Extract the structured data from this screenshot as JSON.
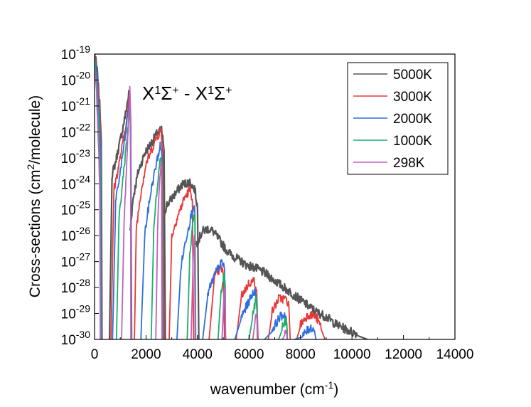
{
  "chart_data": {
    "type": "line",
    "title": "",
    "annotation": {
      "X": "X",
      "one": "1",
      "sigma": "Σ",
      "plus": "+",
      "dash": " - "
    },
    "xlabel": {
      "text": "wavenumber (cm",
      "sup": "-1",
      "close": ")"
    },
    "ylabel": {
      "text": "Cross-sections (cm",
      "sup": "2",
      "close": "/molecule)"
    },
    "xlim": [
      0,
      14000
    ],
    "ylog": true,
    "ylim_exp": [
      -30,
      -19
    ],
    "xticks": [
      "0",
      "2000",
      "4000",
      "6000",
      "8000",
      "10000",
      "12000",
      "14000"
    ],
    "ytick_base": "10",
    "yticks": [
      "-30",
      "-29",
      "-28",
      "-27",
      "-26",
      "-25",
      "-24",
      "-23",
      "-22",
      "-21",
      "-20",
      "-19"
    ],
    "legend_position": "top-right",
    "series": [
      {
        "name": "5000K",
        "color": "#555555",
        "bands": [
          [
            [
              0,
              -19.0
            ],
            [
              100,
              -19.7
            ],
            [
              200,
              -21.0
            ],
            [
              260,
              -22.3
            ],
            [
              290,
              -30.0
            ]
          ],
          [
            [
              580,
              -30.0
            ],
            [
              680,
              -23.7
            ],
            [
              800,
              -23.3
            ],
            [
              1000,
              -22.4
            ],
            [
              1200,
              -21.4
            ],
            [
              1330,
              -20.6
            ],
            [
              1400,
              -21.5
            ],
            [
              1440,
              -30.0
            ]
          ],
          [
            [
              1380,
              -25.9
            ],
            [
              1500,
              -24.6
            ],
            [
              1700,
              -23.6
            ],
            [
              1950,
              -22.9
            ],
            [
              2200,
              -22.5
            ],
            [
              2450,
              -22.1
            ],
            [
              2600,
              -22.0
            ],
            [
              2700,
              -22.7
            ],
            [
              2750,
              -30.0
            ]
          ],
          [
            [
              2650,
              -25.4
            ],
            [
              2800,
              -24.9
            ],
            [
              3100,
              -24.5
            ],
            [
              3400,
              -24.1
            ],
            [
              3700,
              -24.0
            ],
            [
              3900,
              -24.3
            ],
            [
              4000,
              -25.0
            ],
            [
              4050,
              -30.0
            ]
          ],
          [
            [
              3950,
              -26.4
            ],
            [
              4200,
              -25.9
            ],
            [
              4400,
              -25.8
            ],
            [
              4600,
              -25.9
            ],
            [
              4900,
              -26.3
            ],
            [
              5100,
              -26.6
            ],
            [
              5300,
              -26.8
            ],
            [
              5600,
              -27.0
            ],
            [
              5900,
              -27.2
            ],
            [
              6200,
              -27.3
            ],
            [
              6600,
              -27.5
            ],
            [
              7000,
              -27.8
            ],
            [
              7400,
              -28.1
            ],
            [
              7800,
              -28.4
            ],
            [
              8200,
              -28.7
            ],
            [
              8600,
              -29.0
            ],
            [
              9000,
              -29.2
            ],
            [
              9400,
              -29.5
            ],
            [
              9800,
              -29.7
            ],
            [
              10200,
              -29.85
            ],
            [
              10600,
              -30.0
            ]
          ]
        ]
      },
      {
        "name": "3000K",
        "color": "#e8393a",
        "bands": [
          [
            [
              0,
              -19.1
            ],
            [
              100,
              -19.8
            ],
            [
              200,
              -21.2
            ],
            [
              250,
              -22.8
            ],
            [
              275,
              -30.0
            ]
          ],
          [
            [
              640,
              -30.0
            ],
            [
              750,
              -24.3
            ],
            [
              900,
              -23.6
            ],
            [
              1100,
              -22.5
            ],
            [
              1300,
              -21.2
            ],
            [
              1360,
              -20.7
            ],
            [
              1400,
              -21.6
            ],
            [
              1430,
              -30.0
            ]
          ],
          [
            [
              1550,
              -30.0
            ],
            [
              1620,
              -25.8
            ],
            [
              1800,
              -24.4
            ],
            [
              2000,
              -23.3
            ],
            [
              2200,
              -22.8
            ],
            [
              2400,
              -22.3
            ],
            [
              2580,
              -22.0
            ],
            [
              2650,
              -22.8
            ],
            [
              2700,
              -30.0
            ]
          ],
          [
            [
              2900,
              -30.0
            ],
            [
              3000,
              -26.1
            ],
            [
              3200,
              -25.4
            ],
            [
              3500,
              -24.6
            ],
            [
              3700,
              -24.3
            ],
            [
              3800,
              -24.6
            ],
            [
              3850,
              -30.0
            ]
          ],
          [
            [
              4450,
              -30.0
            ],
            [
              4650,
              -27.7
            ],
            [
              4900,
              -27.3
            ],
            [
              5000,
              -27.5
            ],
            [
              5050,
              -30.0
            ]
          ],
          [
            [
              5500,
              -30.0
            ],
            [
              5700,
              -28.4
            ],
            [
              6000,
              -27.9
            ],
            [
              6200,
              -27.8
            ],
            [
              6300,
              -28.1
            ],
            [
              6350,
              -30.0
            ]
          ],
          [
            [
              6750,
              -30.0
            ],
            [
              6900,
              -29.0
            ],
            [
              7150,
              -28.5
            ],
            [
              7400,
              -28.5
            ],
            [
              7550,
              -28.7
            ],
            [
              7600,
              -30.0
            ]
          ],
          [
            [
              7850,
              -30.0
            ],
            [
              8000,
              -29.5
            ],
            [
              8300,
              -29.1
            ],
            [
              8600,
              -29.2
            ],
            [
              8800,
              -29.6
            ],
            [
              8950,
              -30.0
            ]
          ]
        ]
      },
      {
        "name": "2000K",
        "color": "#2e6fe0",
        "bands": [
          [
            [
              0,
              -19.2
            ],
            [
              100,
              -20.0
            ],
            [
              190,
              -21.6
            ],
            [
              240,
              -23.0
            ],
            [
              265,
              -30.0
            ]
          ],
          [
            [
              700,
              -30.0
            ],
            [
              820,
              -24.8
            ],
            [
              1000,
              -23.6
            ],
            [
              1200,
              -22.2
            ],
            [
              1350,
              -20.9
            ],
            [
              1410,
              -21.8
            ],
            [
              1430,
              -30.0
            ]
          ],
          [
            [
              1800,
              -30.0
            ],
            [
              1950,
              -26.0
            ],
            [
              2200,
              -24.3
            ],
            [
              2400,
              -23.3
            ],
            [
              2550,
              -22.6
            ],
            [
              2620,
              -23.0
            ],
            [
              2660,
              -30.0
            ]
          ],
          [
            [
              3200,
              -30.0
            ],
            [
              3350,
              -27.3
            ],
            [
              3550,
              -26.2
            ],
            [
              3750,
              -25.3
            ],
            [
              3850,
              -24.9
            ],
            [
              3900,
              -25.2
            ],
            [
              3930,
              -30.0
            ]
          ],
          [
            [
              4200,
              -30.0
            ],
            [
              4400,
              -28.3
            ],
            [
              4700,
              -27.5
            ],
            [
              4950,
              -27.1
            ],
            [
              5050,
              -27.3
            ],
            [
              5090,
              -30.0
            ]
          ],
          [
            [
              5450,
              -30.0
            ],
            [
              5700,
              -29.2
            ],
            [
              6000,
              -28.6
            ],
            [
              6200,
              -28.2
            ],
            [
              6300,
              -28.4
            ],
            [
              6330,
              -30.0
            ]
          ],
          [
            [
              6600,
              -30.0
            ],
            [
              6900,
              -29.7
            ],
            [
              7200,
              -29.2
            ],
            [
              7400,
              -29.1
            ],
            [
              7470,
              -29.4
            ],
            [
              7490,
              -30.0
            ]
          ],
          [
            [
              7750,
              -30.0
            ],
            [
              8100,
              -29.9
            ],
            [
              8400,
              -29.6
            ],
            [
              8550,
              -29.7
            ],
            [
              8600,
              -30.0
            ]
          ]
        ]
      },
      {
        "name": "1000K",
        "color": "#1bb06a",
        "bands": [
          [
            [
              0,
              -19.3
            ],
            [
              90,
              -20.3
            ],
            [
              170,
              -22.0
            ],
            [
              220,
              -23.5
            ],
            [
              245,
              -30.0
            ]
          ],
          [
            [
              850,
              -30.0
            ],
            [
              950,
              -25.4
            ],
            [
              1100,
              -23.9
            ],
            [
              1250,
              -22.4
            ],
            [
              1360,
              -21.2
            ],
            [
              1400,
              -22.0
            ],
            [
              1420,
              -30.0
            ]
          ],
          [
            [
              2200,
              -30.0
            ],
            [
              2300,
              -25.8
            ],
            [
              2450,
              -24.0
            ],
            [
              2560,
              -22.9
            ],
            [
              2620,
              -23.4
            ],
            [
              2640,
              -30.0
            ]
          ],
          [
            [
              3600,
              -30.0
            ],
            [
              3700,
              -26.8
            ],
            [
              3820,
              -25.5
            ],
            [
              3900,
              -25.2
            ],
            [
              3920,
              -30.0
            ]
          ],
          [
            [
              4800,
              -30.0
            ],
            [
              4900,
              -28.4
            ],
            [
              5030,
              -27.6
            ],
            [
              5080,
              -28.0
            ],
            [
              5090,
              -30.0
            ]
          ],
          [
            [
              6000,
              -30.0
            ],
            [
              6150,
              -29.1
            ],
            [
              6280,
              -28.5
            ],
            [
              6320,
              -29.0
            ],
            [
              6330,
              -30.0
            ]
          ],
          [
            [
              7150,
              -30.0
            ],
            [
              7300,
              -29.6
            ],
            [
              7450,
              -29.3
            ],
            [
              7480,
              -29.6
            ],
            [
              7490,
              -30.0
            ]
          ]
        ]
      },
      {
        "name": "298K",
        "color": "#c060c0",
        "bands": [
          [
            [
              0,
              -19.4
            ],
            [
              80,
              -20.6
            ],
            [
              150,
              -22.5
            ],
            [
              200,
              -24.0
            ],
            [
              225,
              -30.0
            ]
          ],
          [
            [
              1050,
              -30.0
            ],
            [
              1150,
              -25.5
            ],
            [
              1250,
              -23.3
            ],
            [
              1330,
              -21.4
            ],
            [
              1370,
              -20.4
            ],
            [
              1400,
              -21.5
            ],
            [
              1410,
              -30.0
            ]
          ],
          [
            [
              2380,
              -30.0
            ],
            [
              2450,
              -25.8
            ],
            [
              2550,
              -23.6
            ],
            [
              2600,
              -23.2
            ],
            [
              2620,
              -30.0
            ]
          ],
          [
            [
              3750,
              -30.0
            ],
            [
              3830,
              -27.0
            ],
            [
              3880,
              -26.0
            ],
            [
              3910,
              -30.0
            ]
          ],
          [
            [
              4950,
              -30.0
            ],
            [
              5030,
              -28.3
            ],
            [
              5070,
              -28.0
            ],
            [
              5090,
              -30.0
            ]
          ],
          [
            [
              6150,
              -30.0
            ],
            [
              6250,
              -29.2
            ],
            [
              6310,
              -29.0
            ],
            [
              6320,
              -30.0
            ]
          ],
          [
            [
              7300,
              -30.0
            ],
            [
              7400,
              -29.8
            ],
            [
              7460,
              -29.7
            ],
            [
              7480,
              -30.0
            ]
          ]
        ]
      }
    ]
  }
}
